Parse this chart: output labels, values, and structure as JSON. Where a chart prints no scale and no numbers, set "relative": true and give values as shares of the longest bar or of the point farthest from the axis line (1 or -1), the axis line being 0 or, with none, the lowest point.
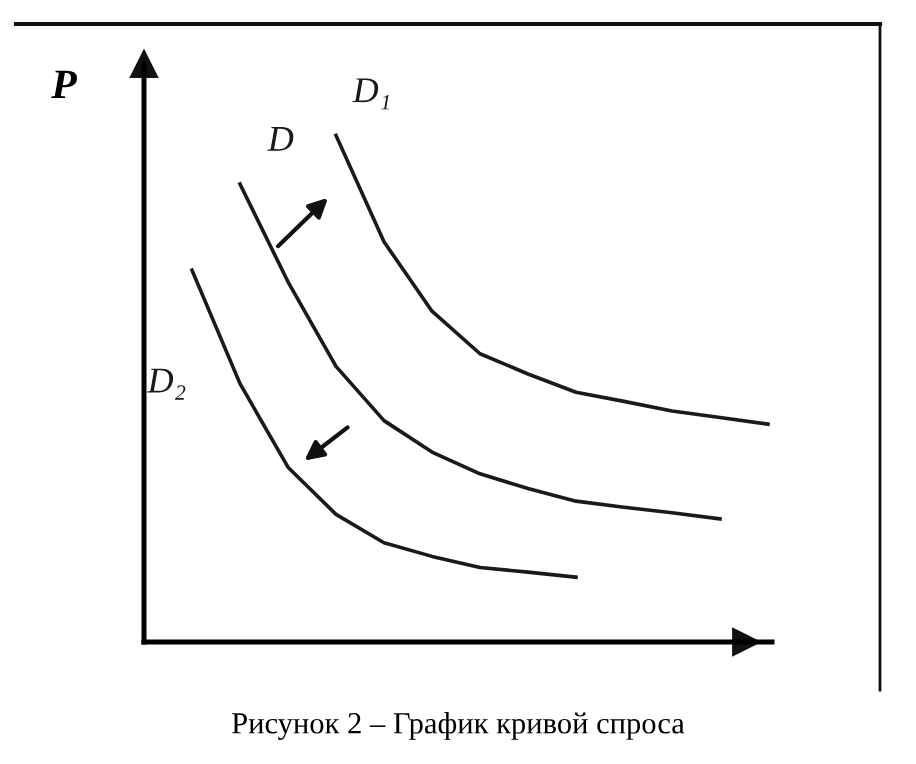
{
  "chart_data": {
    "type": "line",
    "relative": true,
    "ylabel": "P",
    "categories": [
      null,
      null,
      null,
      null,
      null,
      null,
      null,
      null,
      null,
      null,
      null,
      null,
      null
    ],
    "series": [
      {
        "name": "D₁",
        "color": "#1a1a1a",
        "values": [
          null,
          null,
          null,
          1.0,
          0.79,
          0.653,
          0.569,
          0.529,
          0.493,
          0.475,
          0.456,
          0.443,
          0.43
        ]
      },
      {
        "name": "D",
        "color": "#1a1a1a",
        "values": [
          null,
          0.904,
          0.711,
          0.544,
          0.437,
          0.375,
          0.332,
          0.303,
          0.278,
          0.266,
          0.255,
          0.243,
          null
        ]
      },
      {
        "name": "D₂",
        "color": "#1a1a1a",
        "values": [
          0.734,
          0.51,
          0.345,
          0.252,
          0.196,
          0.169,
          0.147,
          0.138,
          0.128,
          null,
          null,
          null,
          null
        ]
      }
    ],
    "annotations": [
      "Рисунок 2 – График кривой спроса"
    ]
  }
}
